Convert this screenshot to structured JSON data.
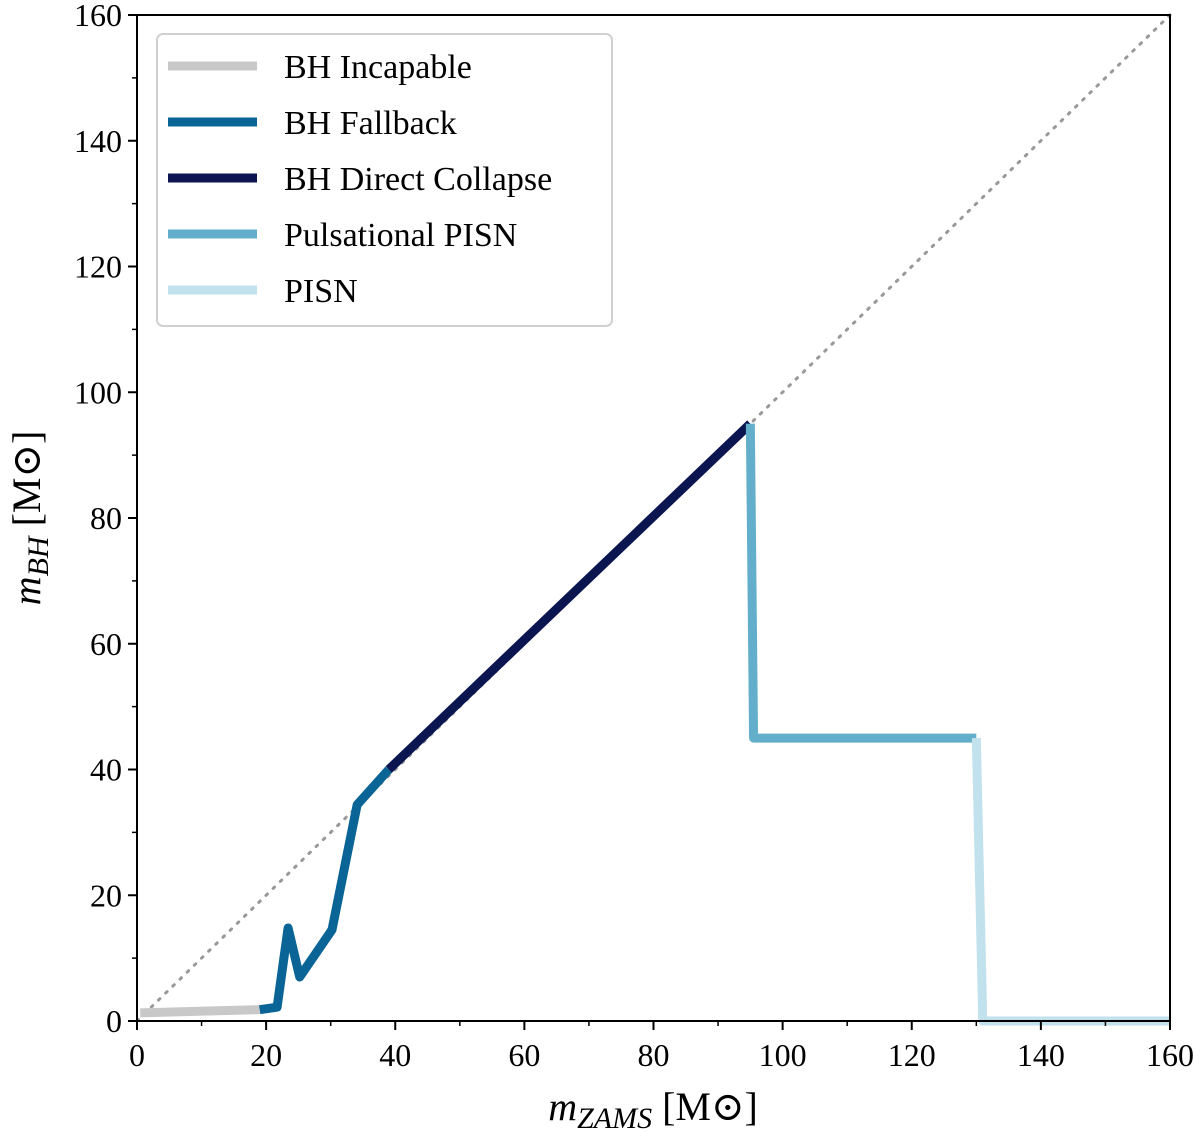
{
  "chart_data": {
    "type": "line",
    "xlabel": {
      "symbol": "m",
      "subscript": "ZAMS",
      "unit": "[M⊙]"
    },
    "ylabel": {
      "symbol": "m",
      "subscript": "BH",
      "unit": "[M⊙]"
    },
    "xlim": [
      0,
      160
    ],
    "ylim": [
      0,
      160
    ],
    "xticks": [
      0,
      20,
      40,
      60,
      80,
      100,
      120,
      140,
      160
    ],
    "yticks": [
      0,
      20,
      40,
      60,
      80,
      100,
      120,
      140,
      160
    ],
    "grid": false,
    "legend_position": "top-left",
    "reference_line": {
      "style": "dotted",
      "color": "#999999",
      "x": [
        0,
        160
      ],
      "y": [
        0,
        160
      ]
    },
    "series": [
      {
        "name": "BH Incapable",
        "color": "#c8c8c8",
        "x": [
          0.5,
          19
        ],
        "y": [
          1.3,
          1.8
        ]
      },
      {
        "name": "BH Fallback",
        "color": "#0a6596",
        "x": [
          19,
          21.7,
          23.4,
          25.2,
          30.2,
          34.1,
          39
        ],
        "y": [
          1.8,
          2.2,
          14.8,
          7,
          14.5,
          34.4,
          40
        ]
      },
      {
        "name": "BH Direct Collapse",
        "color": "#0b1550",
        "x": [
          39,
          95
        ],
        "y": [
          40,
          95
        ]
      },
      {
        "name": "Pulsational PISN",
        "color": "#63aecb",
        "x": [
          95,
          95.5,
          130
        ],
        "y": [
          95,
          45,
          45
        ]
      },
      {
        "name": "PISN",
        "color": "#c1e1ec",
        "x": [
          130,
          131,
          160
        ],
        "y": [
          45,
          0,
          0
        ]
      }
    ]
  }
}
